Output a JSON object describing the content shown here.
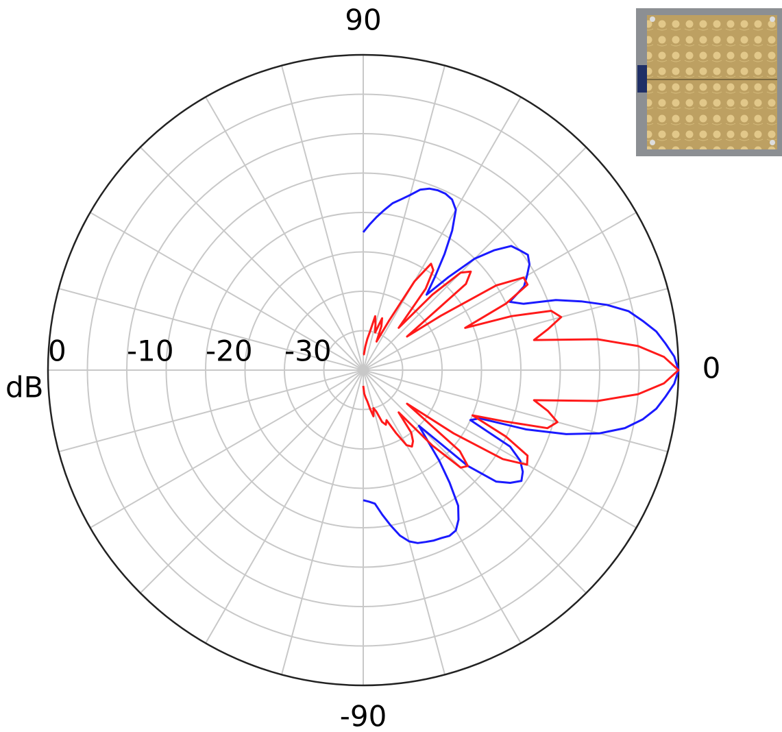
{
  "chart_data": {
    "type": "polar",
    "r_label": "dB",
    "r_label_color": "#119911",
    "rlim": [
      -40,
      0
    ],
    "rticks": [
      0,
      -10,
      -20,
      -30
    ],
    "rgrid": [
      -35,
      -30,
      -25,
      -20,
      -15,
      -10,
      -5
    ],
    "thetaticks": [
      90,
      0,
      -90
    ],
    "thetagrid": [
      -165,
      -150,
      -135,
      -120,
      -105,
      -90,
      -75,
      -60,
      -45,
      -30,
      -15,
      0,
      15,
      30,
      45,
      60,
      75,
      90,
      105,
      120,
      135,
      150,
      165,
      180
    ],
    "grid": true,
    "x": [
      -90,
      -87.5,
      -85,
      -82.5,
      -80,
      -77.5,
      -75,
      -72.5,
      -70,
      -67.5,
      -65,
      -62.5,
      -60,
      -57.5,
      -55,
      -52.5,
      -50,
      -47.5,
      -45,
      -42.5,
      -40,
      -37.5,
      -35,
      -32.5,
      -30,
      -27.5,
      -25,
      -22.5,
      -20,
      -17.5,
      -15,
      -12.5,
      -10,
      -7.5,
      -5,
      -2.5,
      0,
      2.5,
      5,
      7.5,
      10,
      12.5,
      15,
      17.5,
      20,
      22.5,
      25,
      27.5,
      30,
      32.5,
      35,
      37.5,
      40,
      42.5,
      45,
      47.5,
      50,
      52.5,
      55,
      57.5,
      60,
      62.5,
      65,
      67.5,
      70,
      72.5,
      75,
      77.5,
      80,
      82.5,
      85,
      87.5,
      90
    ],
    "series": [
      {
        "color": "#1a1aff",
        "values": [
          -23.5,
          -23.3,
          -23,
          -21.5,
          -20,
          -18.5,
          -17.5,
          -17,
          -16.8,
          -16.6,
          -16.5,
          -16.3,
          -16.5,
          -17.5,
          -19,
          -22,
          -25,
          -28,
          -30,
          -22,
          -18,
          -16.5,
          -15.5,
          -16,
          -17,
          -19,
          -25,
          -24,
          -18,
          -13,
          -9,
          -6,
          -4,
          -2.5,
          -1.5,
          -0.5,
          0,
          -0.5,
          -1.5,
          -2.5,
          -4,
          -5.5,
          -8,
          -11,
          -14,
          -18,
          -19.5,
          -17,
          -16,
          -15,
          -14.5,
          -15,
          -15.5,
          -17.5,
          -20,
          -24,
          -27.5,
          -25,
          -22,
          -19,
          -16.5,
          -15.6,
          -15.3,
          -15.3,
          -15.5,
          -16,
          -17,
          -17.8,
          -18.5,
          -19.5,
          -20.5,
          -21.5,
          -22.5
        ]
      },
      {
        "color": "#ff1a1a",
        "values": [
          -38,
          -37,
          -36.5,
          -36,
          -35,
          -34,
          -35,
          -34.5,
          -33,
          -32.5,
          -33,
          -31,
          -29,
          -28.5,
          -29,
          -30,
          -33,
          -27,
          -22.5,
          -22,
          -24,
          -33,
          -26,
          -19,
          -16,
          -16.5,
          -20,
          -25,
          -21,
          -15.5,
          -14.5,
          -16,
          -18,
          -10,
          -5,
          -1.8,
          0,
          -1.8,
          -5,
          -10,
          -18,
          -16,
          -14,
          -15,
          -20,
          -26,
          -20,
          -16.5,
          -16.5,
          -20,
          -28,
          -33,
          -23,
          -21.5,
          -22.5,
          -27,
          -33,
          -27,
          -24.5,
          -24,
          -27,
          -33,
          -36,
          -34,
          -33,
          -35,
          -34,
          -33,
          -35,
          -36,
          -37,
          -38,
          -38
        ]
      }
    ]
  }
}
